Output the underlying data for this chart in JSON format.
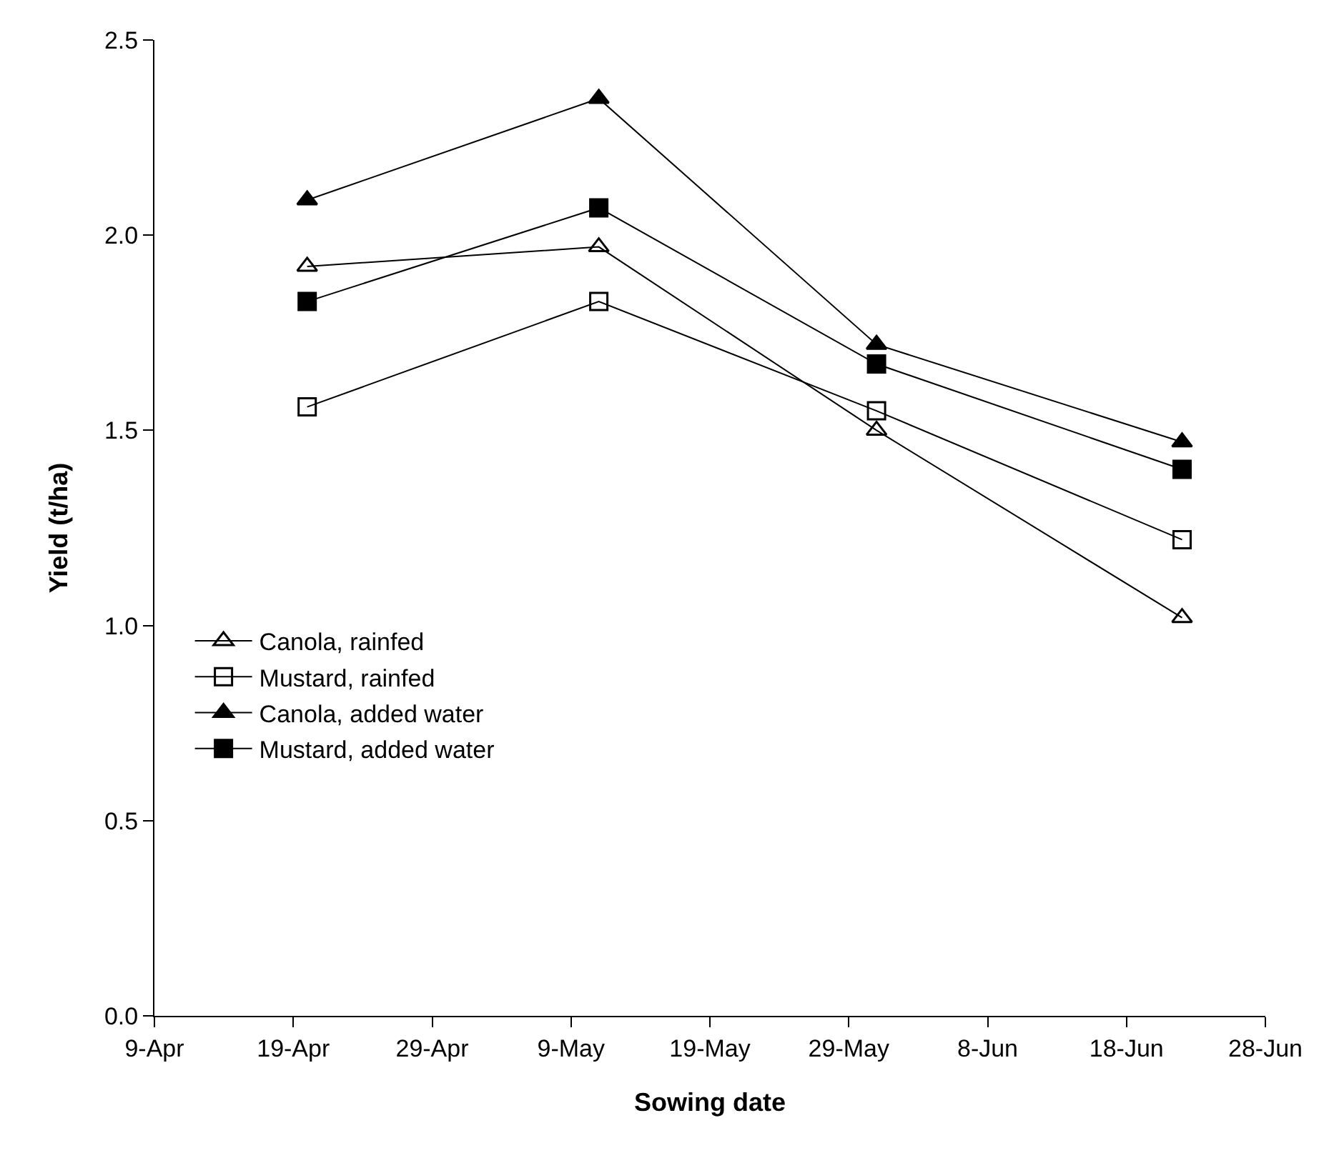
{
  "chart_data": {
    "type": "line",
    "xlabel": "Sowing date",
    "ylabel": "Yield (t/ha)",
    "x": [
      "--04-20",
      "--05-11",
      "--05-31",
      "--06-22"
    ],
    "series": [
      {
        "name": "Canola, rainfed",
        "color": "#000000",
        "marker": "triangle-open",
        "values": [
          1.92,
          1.97,
          1.5,
          1.02
        ]
      },
      {
        "name": "Mustard, rainfed",
        "color": "#000000",
        "marker": "square-open",
        "values": [
          1.56,
          1.83,
          1.55,
          1.22
        ]
      },
      {
        "name": "Canola, added water",
        "color": "#000000",
        "marker": "triangle",
        "values": [
          2.09,
          2.35,
          1.72,
          1.47
        ]
      },
      {
        "name": "Mustard, added water",
        "color": "#000000",
        "marker": "square",
        "values": [
          1.83,
          2.07,
          1.67,
          1.4
        ]
      }
    ],
    "xlim": [
      "--04-09",
      "--06-28"
    ],
    "xticks": [
      {
        "value": "--04-09",
        "label": "9-Apr"
      },
      {
        "value": "--04-19",
        "label": "19-Apr"
      },
      {
        "value": "--04-29",
        "label": "29-Apr"
      },
      {
        "value": "--05-09",
        "label": "9-May"
      },
      {
        "value": "--05-19",
        "label": "19-May"
      },
      {
        "value": "--05-29",
        "label": "29-May"
      },
      {
        "value": "--06-08",
        "label": "8-Jun"
      },
      {
        "value": "--06-18",
        "label": "18-Jun"
      },
      {
        "value": "--06-28",
        "label": "28-Jun"
      }
    ],
    "ylim": [
      0,
      2.5
    ],
    "yticks": [
      {
        "value": 0,
        "label": "0.0"
      },
      0.5,
      {
        "value": 1,
        "label": "1.0"
      },
      1.5,
      {
        "value": 2,
        "label": "2.0"
      },
      2.5
    ],
    "grid": false,
    "legend": "bottom left",
    "line_style": "solid"
  }
}
